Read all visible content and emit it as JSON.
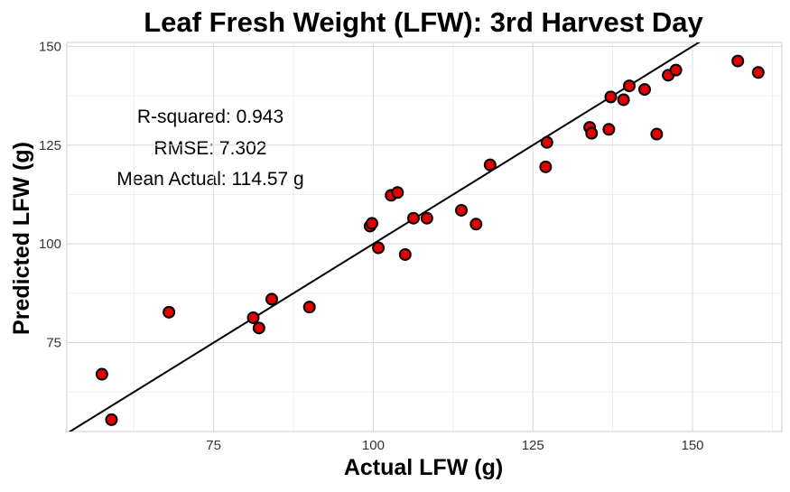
{
  "chart_data": {
    "type": "scatter",
    "title": "Leaf Fresh Weight (LFW): 3rd Harvest Day",
    "xlabel": "Actual LFW (g)",
    "ylabel": "Predicted LFW (g)",
    "xlim": [
      52,
      164
    ],
    "ylim": [
      52.5,
      151
    ],
    "xticks": [
      75,
      100,
      125,
      150
    ],
    "yticks": [
      75,
      100,
      125,
      150
    ],
    "grid": true,
    "colors": {
      "point_fill": "#e30000",
      "point_stroke": "#000000",
      "line": "#000000"
    },
    "fit_line": {
      "slope": 1.0,
      "intercept": 0
    },
    "annotations": [
      "R-squared:  0.943",
      "RMSE:  7.302",
      "Mean Actual:  114.57 g"
    ],
    "points": [
      [
        57.5,
        67
      ],
      [
        59,
        55.5
      ],
      [
        68,
        82.7
      ],
      [
        81.2,
        81.3
      ],
      [
        82.1,
        78.7
      ],
      [
        84.1,
        86
      ],
      [
        90,
        84
      ],
      [
        99.5,
        104.5
      ],
      [
        99.8,
        105.2
      ],
      [
        100.8,
        99
      ],
      [
        102.8,
        112.3
      ],
      [
        103.8,
        113
      ],
      [
        105,
        97.3
      ],
      [
        106.3,
        106.5
      ],
      [
        108.4,
        106.5
      ],
      [
        113.8,
        108.5
      ],
      [
        116.1,
        105
      ],
      [
        118.3,
        120
      ],
      [
        127,
        119.5
      ],
      [
        127.2,
        125.7
      ],
      [
        133.9,
        129.5
      ],
      [
        134.2,
        128
      ],
      [
        136.9,
        129
      ],
      [
        137.2,
        137.2
      ],
      [
        139.2,
        136.5
      ],
      [
        140.1,
        140
      ],
      [
        142.5,
        139.1
      ],
      [
        144.4,
        127.8
      ],
      [
        146.2,
        142.7
      ],
      [
        147.4,
        144
      ],
      [
        157.1,
        146.3
      ],
      [
        160.3,
        143.4
      ]
    ]
  }
}
